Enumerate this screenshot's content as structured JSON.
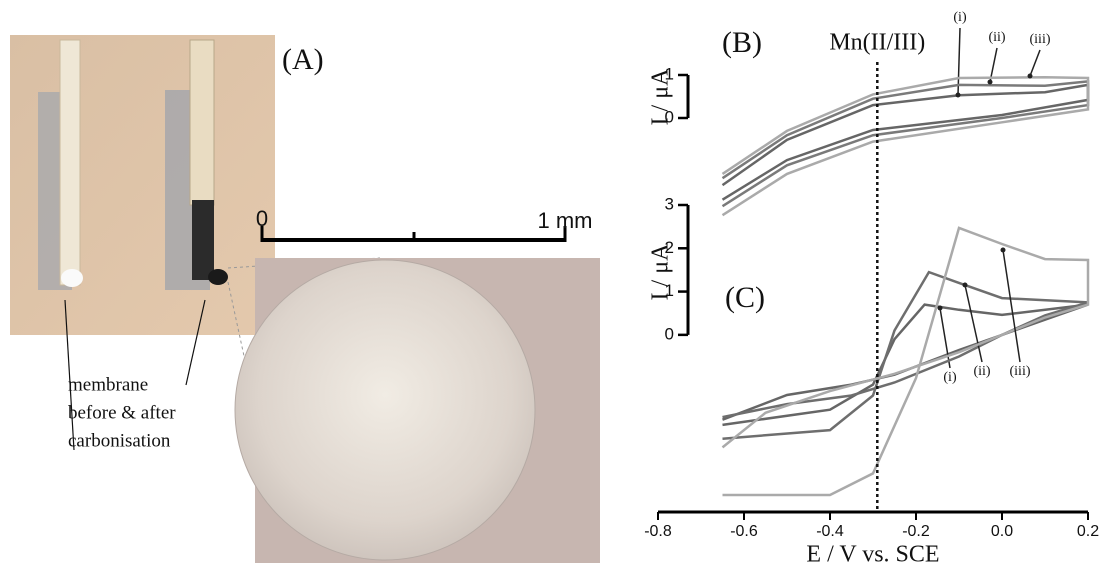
{
  "panel_a": {
    "label": "(A)",
    "scale_bar": {
      "start": "0",
      "end": "1 mm"
    },
    "caption": [
      "membrane",
      "before & after",
      "carbonisation"
    ]
  },
  "chart_data": [
    {
      "type": "line",
      "label": "(B)",
      "y_label": "I / μA",
      "ylim": [
        -2.5,
        1
      ],
      "yticks": [
        0,
        1
      ],
      "series": [
        {
          "name": "(i)",
          "color": "#666666",
          "x": [
            -0.65,
            -0.5,
            -0.3,
            -0.1,
            0.1,
            0.2,
            0.2,
            0.0,
            -0.3,
            -0.5,
            -0.65
          ],
          "values": [
            -1.56,
            -0.51,
            0.3,
            0.53,
            0.6,
            0.77,
            0.42,
            0.07,
            -0.28,
            -0.98,
            -1.9
          ]
        },
        {
          "name": "(ii)",
          "color": "#7a7a7a",
          "x": [
            -0.65,
            -0.5,
            -0.3,
            -0.1,
            0.1,
            0.2,
            0.2,
            0.0,
            -0.3,
            -0.5,
            -0.65
          ],
          "values": [
            -1.4,
            -0.4,
            0.45,
            0.77,
            0.75,
            0.85,
            0.3,
            0.0,
            -0.4,
            -1.1,
            -2.05
          ]
        },
        {
          "name": "(iii)",
          "color": "#aaaaaa",
          "x": [
            -0.65,
            -0.5,
            -0.3,
            -0.1,
            0.1,
            0.2,
            0.2,
            0.0,
            -0.3,
            -0.5,
            -0.65
          ],
          "values": [
            -1.3,
            -0.3,
            0.55,
            0.93,
            0.95,
            0.93,
            0.2,
            -0.1,
            -0.55,
            -1.3,
            -2.26
          ]
        }
      ]
    },
    {
      "type": "line",
      "label": "(C)",
      "y_label": "I / μA",
      "ylim": [
        -4,
        3
      ],
      "yticks": [
        0,
        1,
        2,
        3
      ],
      "xlim": [
        -0.8,
        0.2
      ],
      "xticks": [
        -0.8,
        -0.6,
        -0.4,
        -0.2,
        {
          "value": 0,
          "label": "0.0"
        },
        0.2
      ],
      "x_label": "E / V vs. SCE",
      "vline": {
        "label": "Mn(II/III)",
        "x": -0.29
      },
      "series": [
        {
          "name": "(i)",
          "color": "#666666",
          "x": [
            -0.65,
            -0.4,
            -0.3,
            -0.25,
            -0.18,
            -0.1,
            0.0,
            0.2,
            0.1,
            0.0,
            -0.1,
            -0.25,
            -0.35,
            -0.5,
            -0.65
          ],
          "values": [
            -2.08,
            -1.73,
            -1.15,
            -0.1,
            0.7,
            0.58,
            0.46,
            0.7,
            0.35,
            0.0,
            -0.35,
            -0.92,
            -1.15,
            -1.39,
            -1.96
          ]
        },
        {
          "name": "(ii)",
          "color": "#6e6e6e",
          "x": [
            -0.65,
            -0.4,
            -0.3,
            -0.25,
            -0.17,
            -0.1,
            0.0,
            0.2,
            0.1,
            0.0,
            -0.1,
            -0.25,
            -0.35,
            -0.5,
            -0.65
          ],
          "values": [
            -2.4,
            -2.2,
            -1.4,
            0.1,
            1.45,
            1.2,
            0.85,
            0.75,
            0.45,
            0.0,
            -0.5,
            -1.1,
            -1.4,
            -1.6,
            -1.9
          ]
        },
        {
          "name": "(iii)",
          "color": "#aaaaaa",
          "x": [
            -0.65,
            -0.4,
            -0.3,
            -0.2,
            -0.1,
            0.0,
            0.1,
            0.2,
            0.2,
            0.1,
            0.0,
            -0.1,
            -0.25,
            -0.4,
            -0.55,
            -0.65
          ],
          "values": [
            -3.7,
            -3.7,
            -3.2,
            -1.0,
            2.47,
            2.1,
            1.75,
            1.73,
            0.7,
            0.4,
            0.0,
            -0.4,
            -0.9,
            -1.3,
            -1.8,
            -2.6
          ]
        }
      ]
    }
  ]
}
